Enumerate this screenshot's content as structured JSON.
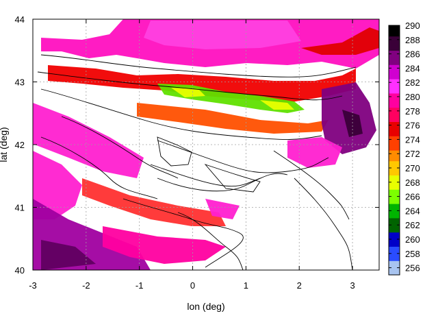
{
  "chart_data": {
    "type": "heatmap",
    "title": "",
    "xlabel": "lon (deg)",
    "ylabel": "lat (deg)",
    "xlim": [
      -3,
      3.5
    ],
    "ylim": [
      40,
      44
    ],
    "x_ticks": [
      -3,
      -2,
      -1,
      0,
      1,
      2,
      3
    ],
    "y_ticks": [
      40,
      41,
      42,
      43,
      44
    ],
    "grid": true,
    "colorbar": {
      "range": [
        255,
        290
      ],
      "ticks": [
        256,
        258,
        260,
        262,
        264,
        266,
        268,
        270,
        272,
        274,
        276,
        278,
        280,
        282,
        284,
        286,
        288,
        290
      ],
      "palette": [
        "#a8c4f0",
        "#2a4cff",
        "#0000c8",
        "#006400",
        "#00b400",
        "#7cff00",
        "#e8ff00",
        "#ffc800",
        "#ff8c00",
        "#ff4000",
        "#e80000",
        "#ff0060",
        "#ff00a0",
        "#ff30ff",
        "#d000d0",
        "#800080",
        "#3a0038",
        "#000000"
      ]
    }
  }
}
